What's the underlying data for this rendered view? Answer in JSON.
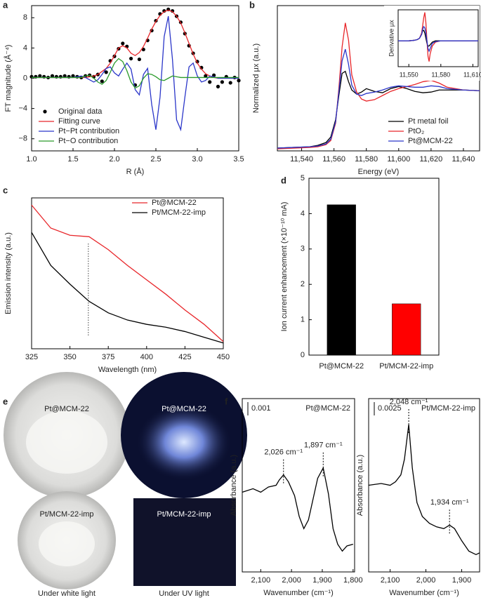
{
  "chart_data": [
    {
      "type": "line",
      "panel": "a",
      "x_label": "R (Å)",
      "y_label": "FT magnitude (Å⁻⁴)",
      "xlim": [
        1.0,
        3.5
      ],
      "ylim": [
        -9.6,
        9.6
      ],
      "xticks": [
        {
          "value": 1.0,
          "label": "1.0"
        },
        1.5,
        {
          "value": 2.0,
          "label": "2.0"
        },
        2.5,
        {
          "value": 3.0,
          "label": "3.0"
        },
        3.5
      ],
      "yticks": [
        {
          "value": -8,
          "label": "−8"
        },
        {
          "value": -4,
          "label": "−4"
        },
        0,
        4,
        8
      ],
      "legend": "lower left",
      "x": [
        1.0,
        1.05,
        1.1,
        1.15,
        1.2,
        1.25,
        1.3,
        1.35,
        1.4,
        1.45,
        1.5,
        1.55,
        1.6,
        1.65,
        1.7,
        1.75,
        1.8,
        1.85,
        1.9,
        1.95,
        2.0,
        2.05,
        2.1,
        2.15,
        2.2,
        2.25,
        2.3,
        2.35,
        2.4,
        2.45,
        2.5,
        2.55,
        2.6,
        2.65,
        2.7,
        2.75,
        2.8,
        2.85,
        2.9,
        2.95,
        3.0,
        3.05,
        3.1,
        3.15,
        3.2,
        3.25,
        3.3,
        3.35,
        3.4,
        3.45,
        3.5
      ],
      "series": [
        {
          "name": "Original data",
          "color": "#000000",
          "mode": "markers",
          "values": [
            0.2,
            0.2,
            0.3,
            0.2,
            0.1,
            0.3,
            0.2,
            0.2,
            0.3,
            0.2,
            0.3,
            0.2,
            0.1,
            0.3,
            0.4,
            0.2,
            0.5,
            -0.4,
            0.8,
            2.3,
            2.9,
            3.9,
            4.6,
            4.2,
            2.6,
            -0.9,
            2.5,
            3.8,
            5.0,
            6.3,
            7.6,
            8.5,
            8.9,
            9.1,
            8.9,
            8.2,
            7.4,
            5.9,
            4.3,
            3.3,
            2.2,
            1.4,
            0.3,
            -0.5,
            0.4,
            -1.1,
            -0.5,
            0.2,
            -0.6,
            0.1,
            -0.3
          ]
        },
        {
          "name": "Fitting curve",
          "color": "#e8262a",
          "mode": "lines",
          "values": [
            0.1,
            0.1,
            0.1,
            0.1,
            0.1,
            0.1,
            0.1,
            0.1,
            0.1,
            0.1,
            0.1,
            0.1,
            0.1,
            0.1,
            0.2,
            0.3,
            0.5,
            0.9,
            1.3,
            2.0,
            3.0,
            4.0,
            4.3,
            4.0,
            3.3,
            3.0,
            3.4,
            4.2,
            5.3,
            6.5,
            7.5,
            8.3,
            8.8,
            9.0,
            8.8,
            8.2,
            7.3,
            6.0,
            4.6,
            3.2,
            2.0,
            1.2,
            0.6,
            0.3,
            0.1,
            0,
            0,
            0,
            0,
            0,
            0
          ]
        },
        {
          "name": "Pt−Pt contribution",
          "color": "#2b36c9",
          "mode": "lines",
          "values": [
            0.1,
            0.1,
            0.1,
            0.1,
            0.1,
            0.1,
            0.1,
            0.1,
            0.1,
            0.1,
            0.1,
            0.2,
            0.3,
            0.1,
            -0.2,
            -0.5,
            -0.2,
            0.5,
            1.3,
            1.5,
            0.7,
            0.3,
            1.2,
            2.0,
            1.2,
            -1.5,
            -2.2,
            0.5,
            1.3,
            -3.5,
            -6.8,
            -2.5,
            5.5,
            8.2,
            2.5,
            -5.5,
            -6.8,
            -2.5,
            1.5,
            2.0,
            0.3,
            -0.5,
            -0.3,
            0.3,
            0.2,
            0,
            0,
            0,
            0,
            0,
            0
          ]
        },
        {
          "name": "Pt−O contribution",
          "color": "#2a9a2a",
          "mode": "lines",
          "values": [
            0.1,
            0.1,
            0.1,
            0.1,
            0.1,
            0.1,
            0.1,
            0.1,
            0.1,
            0.1,
            0.1,
            0.1,
            0.1,
            0.3,
            0.4,
            0,
            -0.5,
            -0.8,
            -0.3,
            0.8,
            2.0,
            2.6,
            2.2,
            1.0,
            -0.5,
            -1.3,
            -1.0,
            0,
            0.6,
            0.5,
            0.2,
            -0.2,
            -0.3,
            0,
            0.3,
            0.2,
            0.1,
            0.1,
            0.1,
            0.1,
            0.1,
            0.1,
            0.1,
            0.1,
            0.1,
            0.1,
            0.1,
            0.1,
            0.1,
            0.1,
            0.1
          ]
        }
      ]
    },
    {
      "type": "line",
      "panel": "b",
      "x_label": "Energy (eV)",
      "y_label": "Normalized μx (a.u.)",
      "xlim": [
        11525,
        11650
      ],
      "ylim": [
        0,
        2.1
      ],
      "xticks": [
        {
          "value": 11540,
          "label": "11,540"
        },
        {
          "value": 11560,
          "label": "11,560"
        },
        {
          "value": 11580,
          "label": "11,580"
        },
        {
          "value": 11600,
          "label": "11,600"
        },
        {
          "value": 11620,
          "label": "11,620"
        },
        {
          "value": 11640,
          "label": "11,640"
        }
      ],
      "legend": "lower right",
      "x": [
        11525,
        11535,
        11545,
        11550,
        11555,
        11558,
        11561,
        11563,
        11565,
        11567,
        11569,
        11571,
        11574,
        11577,
        11580,
        11585,
        11590,
        11595,
        11600,
        11605,
        11610,
        11615,
        11620,
        11625,
        11630,
        11640,
        11650
      ],
      "series": [
        {
          "name": "Pt metal foil",
          "color": "#000000",
          "mode": "lines",
          "values": [
            0.04,
            0.05,
            0.06,
            0.08,
            0.12,
            0.2,
            0.45,
            0.8,
            1.12,
            1.15,
            1.0,
            0.88,
            0.82,
            0.85,
            0.9,
            0.86,
            0.84,
            0.9,
            0.93,
            0.9,
            0.86,
            0.84,
            0.85,
            0.88,
            0.88,
            0.88,
            0.87
          ]
        },
        {
          "name": "PtO₂",
          "color": "#e8262a",
          "mode": "lines",
          "values": [
            0.03,
            0.04,
            0.05,
            0.06,
            0.09,
            0.15,
            0.4,
            0.9,
            1.5,
            1.85,
            1.6,
            1.1,
            0.85,
            0.75,
            0.72,
            0.74,
            0.8,
            0.86,
            0.9,
            0.93,
            0.96,
            1.0,
            1.02,
            0.98,
            0.92,
            0.88,
            0.87
          ]
        },
        {
          "name": "Pt@MCM-22",
          "color": "#2b36c9",
          "mode": "lines",
          "values": [
            0.04,
            0.05,
            0.06,
            0.07,
            0.1,
            0.17,
            0.42,
            0.85,
            1.3,
            1.47,
            1.25,
            0.95,
            0.82,
            0.8,
            0.83,
            0.85,
            0.88,
            0.92,
            0.94,
            0.93,
            0.92,
            0.92,
            0.94,
            0.93,
            0.9,
            0.88,
            0.87
          ]
        }
      ]
    },
    {
      "type": "line",
      "y_label": "Derivative μx",
      "xlim": [
        11540,
        11615
      ],
      "ylim": [
        -1,
        1.2
      ],
      "xticks": [
        {
          "value": 11550,
          "label": "11,550"
        },
        {
          "value": 11580,
          "label": "11,580"
        },
        {
          "value": 11610,
          "label": "11,610"
        }
      ],
      "x": [
        11540,
        11550,
        11555,
        11558,
        11560,
        11562,
        11563,
        11564,
        11565,
        11566,
        11567,
        11568,
        11569,
        11570,
        11572,
        11575,
        11580,
        11590,
        11600,
        11610,
        11615
      ],
      "series": [
        {
          "color": "#000000",
          "mode": "lines",
          "values": [
            0,
            0,
            0.02,
            0.05,
            0.1,
            0.25,
            0.4,
            0.4,
            0.3,
            0.1,
            -0.1,
            -0.2,
            -0.2,
            -0.15,
            -0.05,
            0,
            0,
            0,
            0,
            0,
            0
          ]
        },
        {
          "color": "#e8262a",
          "mode": "lines",
          "values": [
            0,
            0,
            0.02,
            0.05,
            0.1,
            0.3,
            0.6,
            0.9,
            1.1,
            0.7,
            0,
            -0.6,
            -0.8,
            -0.5,
            -0.2,
            -0.05,
            0,
            0,
            0,
            0,
            0
          ]
        },
        {
          "color": "#2b36c9",
          "mode": "lines",
          "values": [
            0,
            0,
            0.02,
            0.05,
            0.1,
            0.25,
            0.45,
            0.55,
            0.5,
            0.3,
            0,
            -0.3,
            -0.4,
            -0.3,
            -0.1,
            -0.03,
            0,
            0,
            0,
            0,
            0
          ]
        }
      ]
    },
    {
      "type": "line",
      "panel": "c",
      "x_label": "Wavelength (nm)",
      "y_label": "Emission intensity (a.u.)",
      "xlim": [
        325,
        450
      ],
      "ylim": [
        -0.5,
        10
      ],
      "xticks": [
        325,
        350,
        375,
        400,
        425,
        450
      ],
      "legend": "upper right",
      "vline": 362,
      "x": [
        325,
        337.5,
        350,
        362.5,
        375,
        387.5,
        400,
        412.5,
        425,
        437.5,
        450
      ],
      "series": [
        {
          "name": "Pt@MCM-22",
          "color": "#e8262a",
          "mode": "lines",
          "values": [
            9.5,
            7.9,
            7.4,
            7.3,
            6.4,
            5.3,
            4.3,
            3.3,
            2.2,
            1.2,
            0
          ]
        },
        {
          "name": "Pt/MCM-22-imp",
          "color": "#000000",
          "mode": "lines",
          "values": [
            7.6,
            5.3,
            4.0,
            2.8,
            2.0,
            1.5,
            1.2,
            1.0,
            0.7,
            0.3,
            -0.1
          ]
        }
      ]
    },
    {
      "type": "bar",
      "panel": "d",
      "y_label": "Ion current enhancement (×10⁻¹⁰ mA)",
      "categories": [
        "Pt@MCM-22",
        "Pt/MCM-22-imp"
      ],
      "values": [
        4.25,
        1.45
      ],
      "colors": [
        "#000000",
        "#ff0000"
      ],
      "ylim": [
        0,
        5
      ],
      "yticks": [
        0,
        1,
        2,
        3,
        4,
        5
      ]
    },
    {
      "type": "line",
      "panel": "f",
      "title": "Pt@MCM-22",
      "scale_label": "0.001",
      "x_label": "Wavenumber (cm⁻¹)",
      "y_label": "Absorbance (a.u.)",
      "xlim": [
        2160,
        1795
      ],
      "ylim": [
        0,
        10
      ],
      "xticks": [
        {
          "value": 2100,
          "label": "2,100"
        },
        {
          "value": 2000,
          "label": "2,000"
        },
        {
          "value": 1900,
          "label": "1,900"
        },
        {
          "value": 1800,
          "label": "1,800"
        }
      ],
      "annotations": [
        {
          "text": "2,026 cm⁻¹",
          "x": 2026
        },
        {
          "text": "1,897 cm⁻¹",
          "x": 1897
        }
      ],
      "x": [
        2160,
        2125,
        2100,
        2075,
        2050,
        2040,
        2026,
        2010,
        1990,
        1975,
        1960,
        1945,
        1930,
        1915,
        1897,
        1880,
        1865,
        1850,
        1835,
        1820,
        1800
      ],
      "series": [
        {
          "color": "#000000",
          "mode": "lines",
          "values": [
            4.6,
            4.8,
            4.6,
            4.9,
            5.0,
            5.3,
            5.6,
            5.2,
            4.4,
            3.2,
            2.5,
            3.0,
            4.2,
            5.4,
            6.0,
            4.5,
            2.5,
            1.6,
            1.2,
            1.5,
            1.6
          ]
        }
      ]
    },
    {
      "type": "line",
      "title": "Pt/MCM-22-imp",
      "scale_label": "0.0025",
      "x_label": "Wavenumber (cm⁻¹)",
      "y_label": "Absorbance (a.u.)",
      "xlim": [
        2160,
        1850
      ],
      "ylim": [
        0,
        10
      ],
      "xticks": [
        {
          "value": 2100,
          "label": "2,100"
        },
        {
          "value": 2000,
          "label": "2,000"
        },
        {
          "value": 1900,
          "label": "1,900"
        }
      ],
      "annotations": [
        {
          "text": "2,048 cm⁻¹",
          "x": 2048
        },
        {
          "text": "1,934 cm⁻¹",
          "x": 1934
        }
      ],
      "x": [
        2160,
        2125,
        2100,
        2085,
        2070,
        2060,
        2048,
        2038,
        2025,
        2010,
        1990,
        1970,
        1950,
        1934,
        1920,
        1900,
        1880,
        1860,
        1850
      ],
      "series": [
        {
          "color": "#000000",
          "mode": "lines",
          "values": [
            5.0,
            5.1,
            5.0,
            5.2,
            5.6,
            6.5,
            8.5,
            6.0,
            4.0,
            3.2,
            2.8,
            2.6,
            2.5,
            2.7,
            2.5,
            1.8,
            1.2,
            1.0,
            1.1
          ]
        }
      ]
    }
  ],
  "panel_e": {
    "panel": "e",
    "photos": [
      "Pt@MCM-22",
      "Pt@MCM-22",
      "Pt/MCM-22-imp",
      "Pt/MCM-22-imp"
    ],
    "captions": [
      "Under white light",
      "Under UV light"
    ]
  }
}
